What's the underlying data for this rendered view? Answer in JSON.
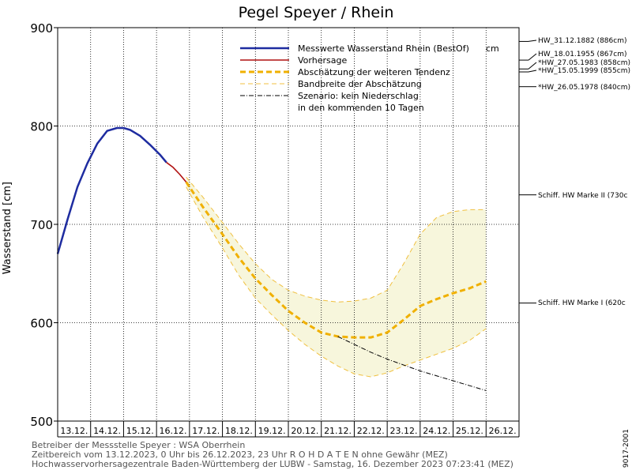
{
  "chart_data": {
    "type": "line",
    "title": "Pegel Speyer / Rhein",
    "ylabel": "Wasserstand [cm]",
    "ylim": [
      500,
      900
    ],
    "yticks": [
      500,
      600,
      700,
      800,
      900
    ],
    "x_tick_labels": [
      "13.12.",
      "14.12.",
      "15.12.",
      "16.12.",
      "17.12.",
      "18.12.",
      "19.12.",
      "20.12.",
      "21.12.",
      "22.12.",
      "23.12.",
      "24.12.",
      "25.12.",
      "26.12."
    ],
    "grid": true,
    "legend": {
      "placement": "top",
      "entries": [
        {
          "label": "Messwerte Wasserstand Rhein (BestOf)",
          "unit": "cm",
          "color": "#1e2ca0",
          "style": "solid-thick"
        },
        {
          "label": "Vorhersage",
          "color": "#b01010",
          "style": "solid"
        },
        {
          "label": "Abschätzung der weiteren Tendenz",
          "color": "#f0b000",
          "style": "dashed-thick"
        },
        {
          "label": "Bandbreite der Abschätzung",
          "color": "#f0c040",
          "style": "dashed-thin"
        },
        {
          "label": "Szenario: kein Niederschlag",
          "label2": "in den kommenden 10 Tagen",
          "color": "#000000",
          "style": "dashdot"
        }
      ]
    },
    "series": [
      {
        "name": "Messwerte Wasserstand Rhein (BestOf)",
        "x_days": [
          0,
          0.3,
          0.6,
          0.9,
          1.2,
          1.5,
          1.8,
          2.0,
          2.2,
          2.5,
          2.8,
          3.1,
          3.3
        ],
        "values": [
          670,
          705,
          738,
          762,
          782,
          795,
          798,
          798,
          796,
          790,
          781,
          771,
          763
        ]
      },
      {
        "name": "Vorhersage",
        "x_days": [
          3.3,
          3.5,
          3.7,
          3.9
        ],
        "values": [
          763,
          758,
          751,
          743
        ]
      },
      {
        "name": "Abschätzung der weiteren Tendenz",
        "x_days": [
          3.9,
          4.4,
          5.0,
          5.5,
          6.0,
          6.5,
          7.0,
          7.5,
          8.0,
          8.5,
          9.0,
          9.5,
          10.0,
          10.5,
          11.0,
          11.5,
          12.0,
          12.5,
          13.0
        ],
        "values": [
          743,
          718,
          690,
          666,
          645,
          628,
          612,
          600,
          590,
          586,
          585,
          585,
          590,
          603,
          617,
          624,
          630,
          635,
          642
        ]
      },
      {
        "name": "Bandbreite der Abschätzung (oben)",
        "x_days": [
          3.9,
          4.4,
          5.0,
          5.5,
          6.0,
          6.5,
          7.0,
          7.5,
          8.0,
          8.5,
          9.0,
          9.5,
          10.0,
          10.5,
          11.0,
          11.5,
          12.0,
          12.5,
          13.0
        ],
        "values": [
          748,
          728,
          702,
          680,
          660,
          644,
          633,
          627,
          623,
          621,
          622,
          625,
          633,
          660,
          690,
          707,
          713,
          715,
          715
        ]
      },
      {
        "name": "Bandbreite der Abschätzung (unten)",
        "x_days": [
          3.9,
          4.4,
          5.0,
          5.5,
          6.0,
          6.5,
          7.0,
          7.5,
          8.0,
          8.5,
          9.0,
          9.5,
          10.0,
          10.5,
          11.0,
          11.5,
          12.0,
          12.5,
          13.0
        ],
        "values": [
          738,
          708,
          676,
          648,
          625,
          608,
          592,
          578,
          566,
          556,
          548,
          545,
          549,
          556,
          562,
          568,
          574,
          582,
          594
        ]
      },
      {
        "name": "Szenario: kein Niederschlag",
        "x_days": [
          8.5,
          9.0,
          9.5,
          10.0,
          10.5,
          11.0,
          11.5,
          12.0,
          12.5,
          13.0
        ],
        "values": [
          586,
          578,
          570,
          563,
          557,
          551,
          546,
          541,
          536,
          531
        ]
      }
    ],
    "reference_marks": [
      {
        "label": "HW_31.12.1882 (886cm)",
        "value": 886
      },
      {
        "label": "HW_18.01.1955 (867cm)",
        "value": 867
      },
      {
        "label": "*HW_27.05.1983 (858cm)",
        "value": 858
      },
      {
        "label": "*HW_15.05.1999 (855cm)",
        "value": 855
      },
      {
        "label": "*HW_26.05.1978 (840cm)",
        "value": 840
      },
      {
        "label": "Schiff. HW Marke II (730c",
        "value": 730
      },
      {
        "label": "Schiff. HW Marke I (620c",
        "value": 620
      }
    ]
  },
  "footer": {
    "line1": "Betreiber der Messstelle Speyer : WSA Oberrhein",
    "line2": "Zeitbereich vom 13.12.2023, 0 Uhr bis 26.12.2023, 23 Uhr    R O H D A T E N ohne Gewähr (MEZ)",
    "line3": "Hochwasservorhersagezentrale Baden-Württemberg der LUBW - Samstag, 16. Dezember 2023 07:23:41 (MEZ)"
  },
  "watermark": "9017-2001"
}
